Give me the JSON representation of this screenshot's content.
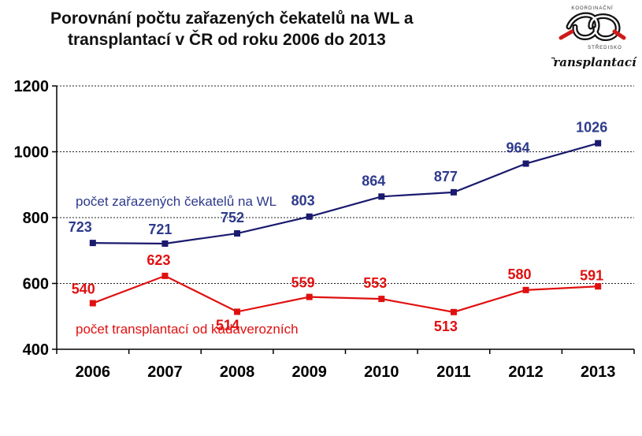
{
  "title_line1": "Porovnání počtu zařazených čekatelů na WL a",
  "title_line2": "transplantací v ČR od roku 2006 do 2013",
  "logo": {
    "top_text": "KOORDINAČNÍ",
    "middle_text": "STŘEDISKO",
    "bottom_text": "Transplantací",
    "color": "#d01a1a"
  },
  "chart_data": {
    "type": "line",
    "x": [
      "2006",
      "2007",
      "2008",
      "2009",
      "2010",
      "2011",
      "2012",
      "2013"
    ],
    "ylim": [
      400,
      1200
    ],
    "yticks": [
      400,
      600,
      800,
      1000,
      1200
    ],
    "grid": true,
    "series": [
      {
        "name": "počet zařazených čekatelů na WL",
        "color": "#1a1a6e",
        "label_color": "#2e3a8c",
        "values": [
          723,
          721,
          752,
          803,
          864,
          877,
          964,
          1026
        ]
      },
      {
        "name": "počet transplantací od kadaverozních",
        "color": "#e01010",
        "label_color": "#e01010",
        "values": [
          540,
          623,
          514,
          559,
          553,
          513,
          580,
          591
        ]
      }
    ]
  }
}
